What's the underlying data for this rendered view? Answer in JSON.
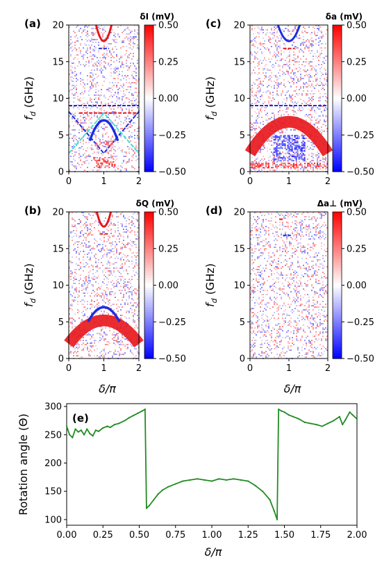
{
  "chart_data": [
    {
      "id": "a",
      "panel_label": "(a)",
      "type": "heatmap",
      "colorbar_title": "δI (mV)",
      "colorbar_ticks": [
        "0.50",
        "0.25",
        "0.00",
        "−0.25",
        "−0.50"
      ],
      "clim": [
        -0.5,
        0.5
      ],
      "colormap": "bwr",
      "xlim": [
        0,
        2
      ],
      "ylim": [
        0,
        20
      ],
      "x_ticks": [
        "0",
        "1",
        "2"
      ],
      "y_ticks": [
        "0",
        "5",
        "10",
        "15",
        "20"
      ],
      "ylabel": "f_d (GHz)",
      "features": [
        {
          "kind": "parabola",
          "sign": 1,
          "vertex_x": 1.0,
          "vertex_y": 17.8,
          "top_x": [
            0.78,
            1.22
          ],
          "top_y": 20
        },
        {
          "kind": "hline",
          "sign": -1,
          "y": 16.8,
          "x": [
            0.85,
            1.15
          ]
        },
        {
          "kind": "hline",
          "sign": -1,
          "y": 9.0,
          "x": [
            0.0,
            2.0
          ]
        },
        {
          "kind": "hline",
          "sign": 1,
          "y": 8.0,
          "x": [
            0.3,
            2.0
          ]
        },
        {
          "kind": "crossing_lines",
          "sign": -1,
          "y_at_ends": 8.2,
          "y_at_center": 2.5
        },
        {
          "kind": "crossing_lines",
          "sign": 0,
          "color": "#40e0d0",
          "y_at_ends": 2.5,
          "y_at_center": 8.0
        },
        {
          "kind": "arch",
          "sign": -1,
          "peak_x": 1.0,
          "peak_y": 7.0,
          "base_x": [
            0.6,
            1.4
          ],
          "base_y": 4.2
        },
        {
          "kind": "band",
          "sign": 1,
          "y": [
            3.6,
            4.2
          ],
          "x": [
            0.75,
            1.25
          ]
        },
        {
          "kind": "band",
          "sign": 1,
          "y": [
            0.5,
            2.0
          ],
          "x": [
            0.7,
            1.3
          ]
        }
      ]
    },
    {
      "id": "c",
      "panel_label": "(c)",
      "type": "heatmap",
      "colorbar_title": "δa (mV)",
      "colorbar_ticks": [
        "0.50",
        "0.25",
        "0.00",
        "−0.25",
        "−0.50"
      ],
      "clim": [
        -0.5,
        0.5
      ],
      "colormap": "bwr",
      "xlim": [
        0,
        2
      ],
      "ylim": [
        0,
        20
      ],
      "x_ticks": [
        "0",
        "1",
        "2"
      ],
      "y_ticks": [
        "0",
        "5",
        "10",
        "15",
        "20"
      ],
      "ylabel": "f_d (GHz)",
      "features": [
        {
          "kind": "parabola",
          "sign": -1,
          "vertex_x": 1.0,
          "vertex_y": 17.8,
          "top_x": [
            0.72,
            1.28
          ],
          "top_y": 20
        },
        {
          "kind": "hline",
          "sign": 1,
          "y": 16.8,
          "x": [
            0.85,
            1.15
          ]
        },
        {
          "kind": "hline",
          "sign": -1,
          "y": 9.0,
          "x": [
            0.0,
            2.0
          ]
        },
        {
          "kind": "arch_band",
          "sign": 1,
          "peak_x": 1.0,
          "peak_y": 6.8,
          "edge_y": 2.5,
          "thickness": 1.6
        },
        {
          "kind": "band",
          "sign": -1,
          "y": [
            1.5,
            5.0
          ],
          "x": [
            0.6,
            1.4
          ]
        },
        {
          "kind": "band",
          "sign": 1,
          "y": [
            0.5,
            1.2
          ],
          "x": [
            0.0,
            2.0
          ]
        }
      ]
    },
    {
      "id": "b",
      "panel_label": "(b)",
      "type": "heatmap",
      "colorbar_title": "δQ (mV)",
      "colorbar_ticks": [
        "0.50",
        "0.25",
        "0.00",
        "−0.25",
        "−0.50"
      ],
      "clim": [
        -0.5,
        0.5
      ],
      "colormap": "bwr",
      "xlim": [
        0,
        2
      ],
      "ylim": [
        0,
        20
      ],
      "x_ticks": [
        "0",
        "1",
        "2"
      ],
      "y_ticks": [
        "0",
        "5",
        "10",
        "15",
        "20"
      ],
      "ylabel": "f_d (GHz)",
      "xlabel": "δ/π",
      "features": [
        {
          "kind": "parabola",
          "sign": 1,
          "vertex_x": 1.0,
          "vertex_y": 18.0,
          "top_x": [
            0.8,
            1.2
          ],
          "top_y": 20
        },
        {
          "kind": "hline",
          "sign": 1,
          "y": 17.0,
          "x": [
            0.88,
            1.12
          ]
        },
        {
          "kind": "arch_band",
          "sign": 1,
          "peak_x": 1.0,
          "peak_y": 5.2,
          "edge_y": 2.0,
          "thickness": 1.6
        },
        {
          "kind": "arch",
          "sign": -1,
          "peak_x": 1.0,
          "peak_y": 7.0,
          "base_x": [
            0.55,
            1.45
          ],
          "base_y": 5.0
        }
      ]
    },
    {
      "id": "d",
      "panel_label": "(d)",
      "type": "heatmap",
      "colorbar_title": "Δa⊥ (mV)",
      "colorbar_ticks": [
        "0.50",
        "0.25",
        "0.00",
        "−0.25",
        "−0.50"
      ],
      "clim": [
        -0.5,
        0.5
      ],
      "colormap": "bwr",
      "xlim": [
        0,
        2
      ],
      "ylim": [
        0,
        20
      ],
      "x_ticks": [
        "0",
        "1",
        "2"
      ],
      "y_ticks": [
        "0",
        "5",
        "10",
        "15",
        "20"
      ],
      "ylabel": "f_d (GHz)",
      "xlabel": "δ/π",
      "features": [
        {
          "kind": "hline",
          "sign": -1,
          "y": 16.8,
          "x": [
            0.85,
            1.05
          ]
        },
        {
          "kind": "hline",
          "sign": 1,
          "y": 19.0,
          "x": [
            0.75,
            0.85
          ]
        }
      ]
    },
    {
      "id": "e",
      "panel_label": "(e)",
      "type": "line",
      "xlabel": "δ/π",
      "ylabel": "Rotation angle (Θ)",
      "xlim": [
        0,
        2
      ],
      "ylim": [
        90,
        305
      ],
      "x_ticks": [
        "0.00",
        "0.25",
        "0.50",
        "0.75",
        "1.00",
        "1.25",
        "1.50",
        "1.75",
        "2.00"
      ],
      "y_ticks": [
        "100",
        "150",
        "200",
        "250",
        "300"
      ],
      "series": [
        {
          "color": "#228b22",
          "x": [
            0.0,
            0.02,
            0.04,
            0.06,
            0.08,
            0.1,
            0.12,
            0.14,
            0.16,
            0.18,
            0.2,
            0.22,
            0.25,
            0.28,
            0.3,
            0.33,
            0.36,
            0.4,
            0.43,
            0.46,
            0.49,
            0.52,
            0.54,
            0.55,
            0.57,
            0.6,
            0.63,
            0.66,
            0.7,
            0.75,
            0.8,
            0.85,
            0.9,
            0.95,
            1.0,
            1.05,
            1.1,
            1.15,
            1.2,
            1.25,
            1.3,
            1.35,
            1.4,
            1.43,
            1.45,
            1.46,
            1.48,
            1.5,
            1.53,
            1.56,
            1.6,
            1.64,
            1.68,
            1.72,
            1.76,
            1.8,
            1.84,
            1.88,
            1.9,
            1.92,
            1.95,
            1.97,
            2.0
          ],
          "y": [
            265,
            250,
            245,
            260,
            255,
            258,
            250,
            260,
            252,
            248,
            258,
            256,
            262,
            265,
            263,
            268,
            270,
            275,
            280,
            284,
            288,
            292,
            295,
            120,
            125,
            135,
            145,
            152,
            158,
            163,
            168,
            170,
            172,
            170,
            168,
            172,
            170,
            172,
            170,
            168,
            160,
            150,
            135,
            115,
            100,
            295,
            292,
            290,
            285,
            282,
            278,
            272,
            270,
            268,
            265,
            270,
            275,
            282,
            268,
            276,
            290,
            285,
            278
          ]
        }
      ]
    }
  ]
}
